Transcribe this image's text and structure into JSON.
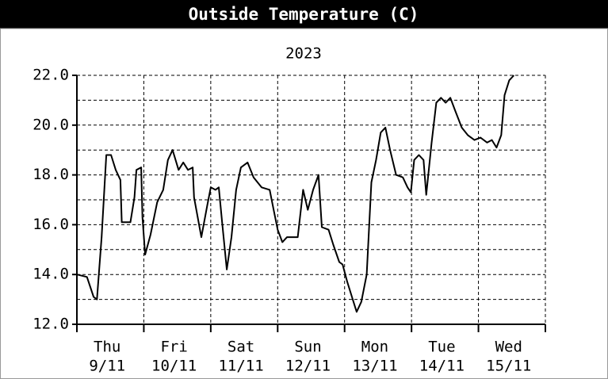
{
  "chart_data": {
    "type": "line",
    "title": "Outside Temperature (C)",
    "subtitle": "2023",
    "x": [
      0,
      0.15,
      0.25,
      0.3,
      0.37,
      0.44,
      0.51,
      0.58,
      0.65,
      0.67,
      0.8,
      0.86,
      0.89,
      0.96,
      0.98,
      1.02,
      1.1,
      1.2,
      1.29,
      1.36,
      1.43,
      1.52,
      1.59,
      1.66,
      1.73,
      1.75,
      1.86,
      1.95,
      2.0,
      2.07,
      2.12,
      2.17,
      2.24,
      2.31,
      2.38,
      2.45,
      2.55,
      2.64,
      2.76,
      2.88,
      2.94,
      3.0,
      3.07,
      3.14,
      3.23,
      3.3,
      3.38,
      3.45,
      3.53,
      3.61,
      3.66,
      3.76,
      3.83,
      3.92,
      3.97,
      4.04,
      4.11,
      4.18,
      4.25,
      4.33,
      4.4,
      4.47,
      4.54,
      4.61,
      4.68,
      4.77,
      4.87,
      4.94,
      4.99,
      5.04,
      5.11,
      5.18,
      5.22,
      5.3,
      5.37,
      5.44,
      5.51,
      5.58,
      5.65,
      5.75,
      5.84,
      5.94,
      6.03,
      6.13,
      6.2,
      6.27,
      6.34,
      6.39,
      6.46,
      6.53
    ],
    "values": [
      14.0,
      13.9,
      13.1,
      13.0,
      15.5,
      18.8,
      18.8,
      18.2,
      17.8,
      16.1,
      16.1,
      17.1,
      18.2,
      18.3,
      16.3,
      14.8,
      15.6,
      16.9,
      17.4,
      18.6,
      19.0,
      18.2,
      18.5,
      18.2,
      18.3,
      17.1,
      15.5,
      16.8,
      17.5,
      17.4,
      17.5,
      16.1,
      14.2,
      15.5,
      17.4,
      18.3,
      18.5,
      17.9,
      17.5,
      17.4,
      16.6,
      15.8,
      15.3,
      15.5,
      15.5,
      15.5,
      17.4,
      16.6,
      17.4,
      18.0,
      15.9,
      15.8,
      15.2,
      14.5,
      14.4,
      13.7,
      13.1,
      12.5,
      12.9,
      14.0,
      17.7,
      18.6,
      19.7,
      19.9,
      19.0,
      18.0,
      17.9,
      17.5,
      17.3,
      18.6,
      18.8,
      18.6,
      17.2,
      19.3,
      20.9,
      21.1,
      20.9,
      21.1,
      20.6,
      19.9,
      19.6,
      19.4,
      19.5,
      19.3,
      19.4,
      19.1,
      19.6,
      21.2,
      21.8,
      22.0
    ],
    "color": "#000000",
    "xlim": [
      0,
      7
    ],
    "xticks": [
      0,
      1,
      2,
      3,
      4,
      5,
      6,
      7
    ],
    "days": [
      [
        "Thu",
        "9/11"
      ],
      [
        "Fri",
        "10/11"
      ],
      [
        "Sat",
        "11/11"
      ],
      [
        "Sun",
        "12/11"
      ],
      [
        "Mon",
        "13/11"
      ],
      [
        "Tue",
        "14/11"
      ],
      [
        "Wed",
        "15/11"
      ]
    ],
    "ylim": [
      12,
      22
    ],
    "yticks": [
      {
        "value": 12,
        "label": "12.0"
      },
      {
        "value": 14,
        "label": "14.0"
      },
      {
        "value": 16,
        "label": "16.0"
      },
      {
        "value": 18,
        "label": "18.0"
      },
      {
        "value": 20,
        "label": "20.0"
      },
      {
        "value": 22,
        "label": "22.0"
      }
    ],
    "yminor": [
      13,
      15,
      17,
      19,
      21
    ],
    "grid": true
  }
}
